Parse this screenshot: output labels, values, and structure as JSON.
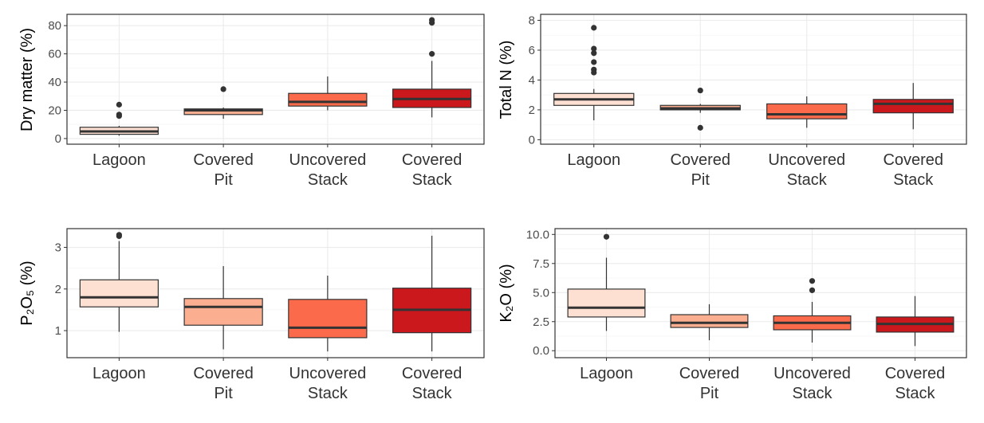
{
  "chart_data": [
    {
      "type": "box",
      "ylabel": "Dry matter (%)",
      "categories": [
        [
          "Lagoon"
        ],
        [
          "Covered",
          "Pit"
        ],
        [
          "Uncovered",
          "Stack"
        ],
        [
          "Covered",
          "Stack"
        ]
      ],
      "yticks": [
        0,
        20,
        40,
        60,
        80
      ],
      "ytick_labels": [
        "0",
        "20",
        "40",
        "60",
        "80"
      ],
      "ylim": [
        -4,
        88
      ],
      "boxes": [
        {
          "whisker_low": 2,
          "q1": 3,
          "median": 5,
          "q3": 8,
          "whisker_high": 9,
          "outliers": [
            16,
            17,
            24
          ]
        },
        {
          "whisker_low": 14,
          "q1": 17,
          "median": 20,
          "q3": 21,
          "whisker_high": 22,
          "outliers": [
            35
          ]
        },
        {
          "whisker_low": 20,
          "q1": 23,
          "median": 26,
          "q3": 32,
          "whisker_high": 44,
          "outliers": []
        },
        {
          "whisker_low": 15,
          "q1": 22,
          "median": 28,
          "q3": 35,
          "whisker_high": 55,
          "outliers": [
            60,
            82,
            84
          ]
        }
      ]
    },
    {
      "type": "box",
      "ylabel": "Total N (%)",
      "categories": [
        [
          "Lagoon"
        ],
        [
          "Covered",
          "Pit"
        ],
        [
          "Uncovered",
          "Stack"
        ],
        [
          "Covered",
          "Stack"
        ]
      ],
      "yticks": [
        0,
        2,
        4,
        6,
        8
      ],
      "ytick_labels": [
        "0",
        "2",
        "4",
        "6",
        "8"
      ],
      "ylim": [
        -0.3,
        8.4
      ],
      "boxes": [
        {
          "whisker_low": 1.3,
          "q1": 2.3,
          "median": 2.7,
          "q3": 3.1,
          "whisker_high": 3.4,
          "outliers": [
            4.5,
            4.7,
            5.2,
            5.8,
            6.1,
            7.5
          ]
        },
        {
          "whisker_low": 1.8,
          "q1": 2.0,
          "median": 2.1,
          "q3": 2.3,
          "whisker_high": 2.4,
          "outliers": [
            0.8,
            3.3
          ]
        },
        {
          "whisker_low": 0.8,
          "q1": 1.4,
          "median": 1.7,
          "q3": 2.4,
          "whisker_high": 2.9,
          "outliers": []
        },
        {
          "whisker_low": 0.7,
          "q1": 1.8,
          "median": 2.4,
          "q3": 2.7,
          "whisker_high": 3.8,
          "outliers": []
        }
      ]
    },
    {
      "type": "box",
      "ylabel": "P₂O₅ (%)",
      "categories": [
        [
          "Lagoon"
        ],
        [
          "Covered",
          "Pit"
        ],
        [
          "Uncovered",
          "Stack"
        ],
        [
          "Covered",
          "Stack"
        ]
      ],
      "yticks": [
        1,
        2,
        3
      ],
      "ytick_labels": [
        "1",
        "2",
        "3"
      ],
      "ylim": [
        0.35,
        3.45
      ],
      "boxes": [
        {
          "whisker_low": 0.97,
          "q1": 1.57,
          "median": 1.8,
          "q3": 2.22,
          "whisker_high": 3.15,
          "outliers": [
            3.27,
            3.3
          ]
        },
        {
          "whisker_low": 0.55,
          "q1": 1.13,
          "median": 1.57,
          "q3": 1.77,
          "whisker_high": 2.55,
          "outliers": []
        },
        {
          "whisker_low": 0.5,
          "q1": 0.83,
          "median": 1.07,
          "q3": 1.75,
          "whisker_high": 2.32,
          "outliers": []
        },
        {
          "whisker_low": 0.5,
          "q1": 0.95,
          "median": 1.5,
          "q3": 2.02,
          "whisker_high": 3.28,
          "outliers": []
        }
      ]
    },
    {
      "type": "box",
      "ylabel": "K₂O (%)",
      "categories": [
        [
          "Lagoon"
        ],
        [
          "Covered",
          "Pit"
        ],
        [
          "Uncovered",
          "Stack"
        ],
        [
          "Covered",
          "Stack"
        ]
      ],
      "yticks": [
        0,
        2.5,
        5,
        7.5,
        10
      ],
      "ytick_labels": [
        "0.0",
        "2.5",
        "5.0",
        "7.5",
        "10.0"
      ],
      "ylim": [
        -0.6,
        10.5
      ],
      "boxes": [
        {
          "whisker_low": 1.7,
          "q1": 2.9,
          "median": 3.7,
          "q3": 5.3,
          "whisker_high": 8.0,
          "outliers": [
            9.8
          ]
        },
        {
          "whisker_low": 0.9,
          "q1": 2.0,
          "median": 2.4,
          "q3": 3.1,
          "whisker_high": 4.0,
          "outliers": []
        },
        {
          "whisker_low": 0.7,
          "q1": 1.8,
          "median": 2.4,
          "q3": 3.0,
          "whisker_high": 4.2,
          "outliers": [
            5.2,
            6.0
          ]
        },
        {
          "whisker_low": 0.4,
          "q1": 1.6,
          "median": 2.3,
          "q3": 2.9,
          "whisker_high": 4.7,
          "outliers": []
        }
      ]
    }
  ],
  "colors": {
    "fills": [
      "#fee0d2",
      "#fcae91",
      "#fb6a4a",
      "#cb181d"
    ],
    "median": "#333333",
    "grid_major": "#ebebeb",
    "grid_minor": "#f5f5f5",
    "panel_border": "#333333",
    "point": "#333333"
  }
}
